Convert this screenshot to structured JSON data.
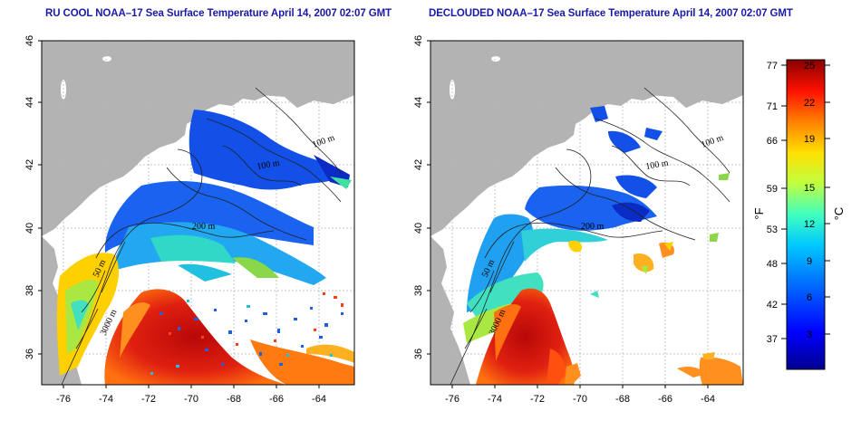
{
  "maps": [
    {
      "title": "RU COOL NOAA–17 Sea Surface Temperature April 14, 2007 02:07 GMT",
      "lat_ticks": [
        "46",
        "44",
        "42",
        "40",
        "38",
        "36"
      ],
      "lon_ticks": [
        "-76",
        "-74",
        "-72",
        "-70",
        "-68",
        "-66",
        "-64"
      ],
      "contour_labels": [
        "100 m",
        "100 m",
        "200 m",
        "50 m",
        "3000 m"
      ]
    },
    {
      "title": "DECLOUDED NOAA–17 Sea Surface Temperature April 14, 2007 02:07 GMT",
      "lat_ticks": [
        "46",
        "44",
        "42",
        "40",
        "38",
        "36"
      ],
      "lon_ticks": [
        "-76",
        "-74",
        "-72",
        "-70",
        "-68",
        "-66",
        "-64"
      ],
      "contour_labels": [
        "100 m",
        "100 m",
        "200 m",
        "50 m",
        "3000 m"
      ]
    }
  ],
  "colorbar": {
    "fahrenheit_ticks": [
      "77",
      "71",
      "66",
      "59",
      "53",
      "48",
      "42",
      "37"
    ],
    "celsius_ticks": [
      "25",
      "22",
      "19",
      "15",
      "12",
      "9",
      "6",
      "3"
    ],
    "fahrenheit_unit": "°F",
    "celsius_unit": "°C"
  },
  "colors": {
    "land": "#b3b3b3",
    "warm": "#c81010",
    "cool": "#1848e0",
    "title": "#1a1aa6"
  }
}
